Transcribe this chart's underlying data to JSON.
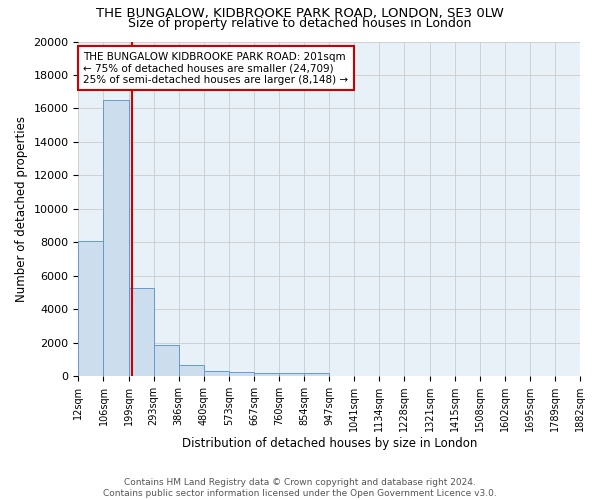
{
  "title": "THE BUNGALOW, KIDBROOKE PARK ROAD, LONDON, SE3 0LW",
  "subtitle": "Size of property relative to detached houses in London",
  "xlabel": "Distribution of detached houses by size in London",
  "ylabel": "Number of detached properties",
  "bar_color": "#ccdded",
  "bar_edge_color": "#6699cc",
  "bar_heights": [
    8100,
    16500,
    5300,
    1850,
    700,
    320,
    230,
    200,
    170,
    170,
    0,
    0,
    0,
    0,
    0,
    0,
    0,
    0,
    0,
    0
  ],
  "x_tick_labels": [
    "12sqm",
    "106sqm",
    "199sqm",
    "293sqm",
    "386sqm",
    "480sqm",
    "573sqm",
    "667sqm",
    "760sqm",
    "854sqm",
    "947sqm",
    "1041sqm",
    "1134sqm",
    "1228sqm",
    "1321sqm",
    "1415sqm",
    "1508sqm",
    "1602sqm",
    "1695sqm",
    "1789sqm",
    "1882sqm"
  ],
  "n_bins": 20,
  "property_bin_index": 2,
  "red_line_color": "#cc0000",
  "annotation_text": "THE BUNGALOW KIDBROOKE PARK ROAD: 201sqm\n← 75% of detached houses are smaller (24,709)\n25% of semi-detached houses are larger (8,148) →",
  "annotation_box_color": "#ffffff",
  "annotation_border_color": "#cc0000",
  "ylim": [
    0,
    20000
  ],
  "yticks": [
    0,
    2000,
    4000,
    6000,
    8000,
    10000,
    12000,
    14000,
    16000,
    18000,
    20000
  ],
  "grid_color": "#cccccc",
  "background_color": "#e8f0f8",
  "footer_text": "Contains HM Land Registry data © Crown copyright and database right 2024.\nContains public sector information licensed under the Open Government Licence v3.0.",
  "title_fontsize": 9.5,
  "subtitle_fontsize": 9,
  "axis_label_fontsize": 8.5,
  "tick_label_fontsize": 7,
  "annotation_fontsize": 7.5,
  "footer_fontsize": 6.5
}
